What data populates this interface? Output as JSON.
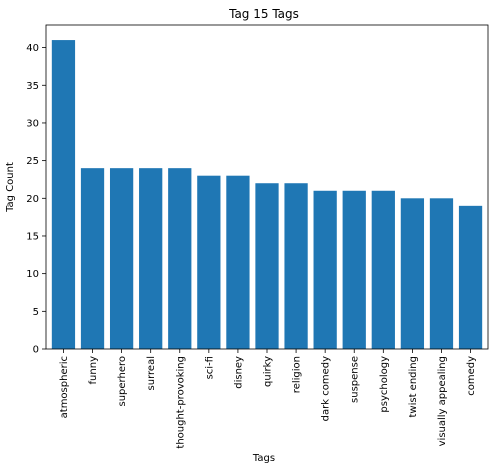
{
  "chart_data": {
    "type": "bar",
    "title": "Tag 15 Tags",
    "xlabel": "Tags",
    "ylabel": "Tag Count",
    "ylim": [
      0,
      43
    ],
    "yticks": [
      0,
      5,
      10,
      15,
      20,
      25,
      30,
      35,
      40
    ],
    "categories": [
      "atmospheric",
      "funny",
      "superhero",
      "surreal",
      "thought-provoking",
      "sci-fi",
      "disney",
      "quirky",
      "religion",
      "dark comedy",
      "suspense",
      "psychology",
      "twist ending",
      "visually appealing",
      "comedy"
    ],
    "values": [
      41,
      24,
      24,
      24,
      24,
      23,
      23,
      22,
      22,
      21,
      21,
      21,
      20,
      20,
      19
    ],
    "bar_color": "#1f77b4",
    "grid": false
  }
}
